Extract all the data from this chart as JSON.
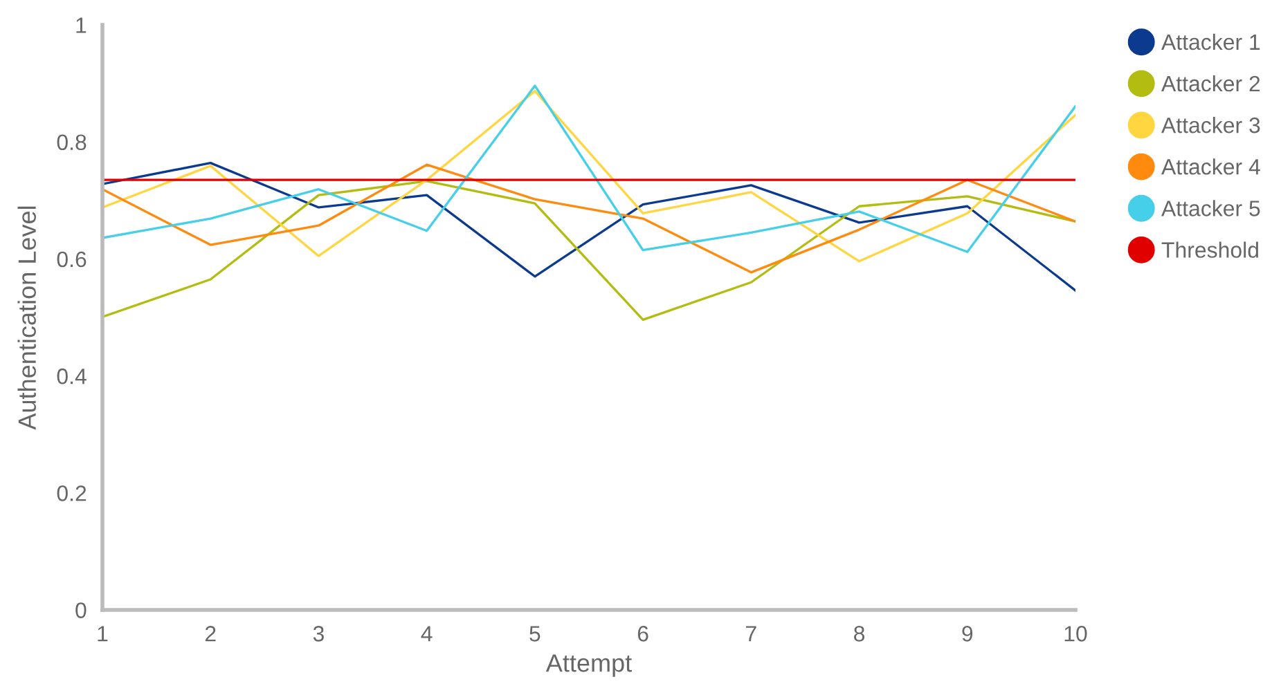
{
  "chart_data": {
    "type": "line",
    "xlabel": "Attempt",
    "ylabel": "Authentication Level",
    "x": [
      1,
      2,
      3,
      4,
      5,
      6,
      7,
      8,
      9,
      10
    ],
    "xlim": [
      1,
      10
    ],
    "xticks": [
      1,
      2,
      3,
      4,
      5,
      6,
      7,
      8,
      9,
      10
    ],
    "ylim": [
      0,
      1
    ],
    "yticks": [
      0,
      {
        "value": 0.2,
        "label": "0.2"
      },
      {
        "value": 0.4,
        "label": "0.4"
      },
      {
        "value": 0.6,
        "label": "0.6"
      },
      {
        "value": 0.8,
        "label": "0.8"
      },
      1
    ],
    "grid": false,
    "legend": "right",
    "marker": "none",
    "line_style": "solid",
    "series": [
      {
        "name": "Attacker 1",
        "color": "#0b3a8f",
        "values": [
          0.728,
          0.764,
          0.688,
          0.709,
          0.57,
          0.693,
          0.726,
          0.662,
          0.69,
          0.546
        ]
      },
      {
        "name": "Attacker 2",
        "color": "#b3bc10",
        "values": [
          0.501,
          0.565,
          0.709,
          0.733,
          0.695,
          0.496,
          0.56,
          0.69,
          0.707,
          0.664
        ]
      },
      {
        "name": "Attacker 3",
        "color": "#ffd640",
        "values": [
          0.688,
          0.759,
          0.605,
          0.735,
          0.887,
          0.678,
          0.714,
          0.596,
          0.678,
          0.846
        ]
      },
      {
        "name": "Attacker 4",
        "color": "#ff8a0e",
        "values": [
          0.719,
          0.624,
          0.657,
          0.761,
          0.702,
          0.669,
          0.577,
          0.65,
          0.735,
          0.664
        ]
      },
      {
        "name": "Attacker 5",
        "color": "#46cfe8",
        "values": [
          0.636,
          0.669,
          0.719,
          0.648,
          0.896,
          0.615,
          0.645,
          0.681,
          0.612,
          0.861
        ]
      },
      {
        "name": "Threshold",
        "color": "#e00000",
        "values": [
          0.735,
          0.735,
          0.735,
          0.735,
          0.735,
          0.735,
          0.735,
          0.735,
          0.735,
          0.735
        ]
      }
    ]
  }
}
